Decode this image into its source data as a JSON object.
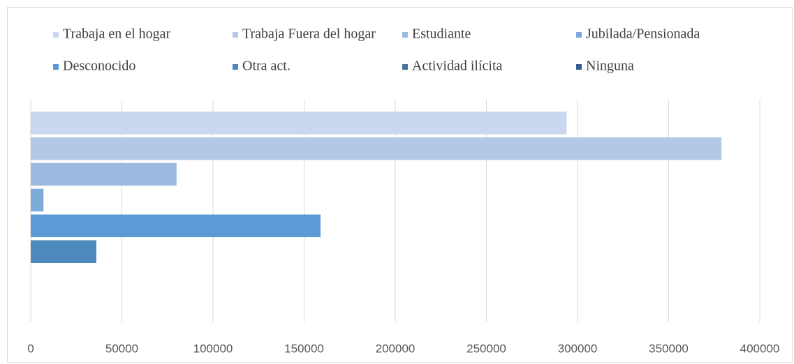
{
  "chart_data": {
    "type": "bar",
    "orientation": "horizontal",
    "categories": [
      null
    ],
    "series": [
      {
        "name": "Trabaja en el hogar",
        "color": "#c9d8ef",
        "values": [
          294000
        ]
      },
      {
        "name": "Trabaja Fuera del hogar",
        "color": "#b3c8e5",
        "values": [
          379000
        ]
      },
      {
        "name": "Estudiante",
        "color": "#9bbae0",
        "values": [
          80000
        ]
      },
      {
        "name": "Jubilada/Pensionada",
        "color": "#7caad9",
        "values": [
          7000
        ]
      },
      {
        "name": "Desconocido",
        "color": "#5b9bd5",
        "values": [
          159000
        ]
      },
      {
        "name": "Otra act.",
        "color": "#4e89be",
        "values": [
          36000
        ]
      },
      {
        "name": "Actividad ilícita",
        "color": "#44749f",
        "values": [
          0
        ]
      },
      {
        "name": "Ninguna",
        "color": "#335f8c",
        "values": [
          0
        ]
      }
    ],
    "xlim": [
      0,
      400000
    ],
    "xticks": [
      0,
      50000,
      100000,
      150000,
      200000,
      250000,
      300000,
      350000,
      400000
    ],
    "grid": true,
    "legend": "top"
  }
}
